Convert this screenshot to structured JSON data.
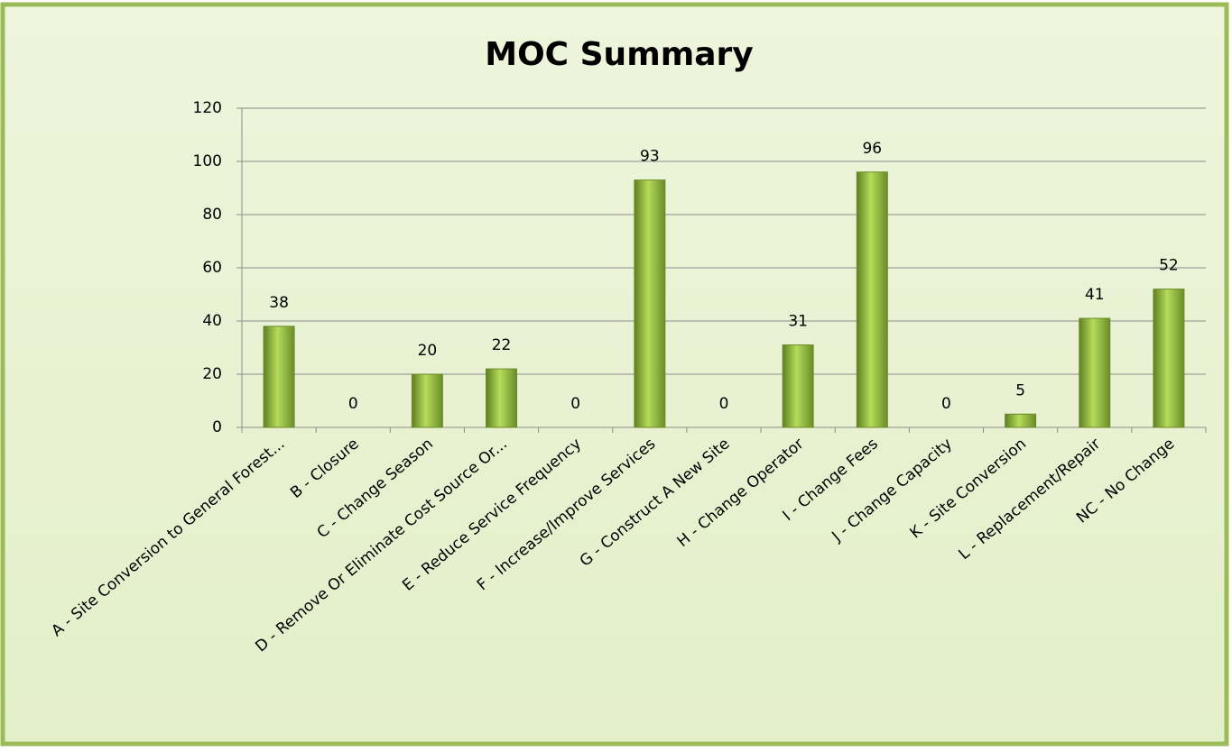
{
  "chart_data": {
    "type": "bar",
    "title": "MOC Summary",
    "categories": [
      "A - Site Conversion to General Forest...",
      "B - Closure",
      "C - Change Season",
      "D - Remove Or Eliminate Cost Source Or...",
      "E - Reduce Service Frequency",
      "F - Increase/Improve Services",
      "G - Construct A New Site",
      "H - Change Operator",
      "I - Change Fees",
      "J - Change Capacity",
      "K - Site Conversion",
      "L - Replacement/Repair",
      "NC - No Change"
    ],
    "values": [
      38,
      0,
      20,
      22,
      0,
      93,
      0,
      31,
      96,
      0,
      5,
      41,
      52
    ],
    "color": "#9bbb59",
    "ylim": [
      0,
      120
    ],
    "yticks": [
      0,
      20,
      40,
      60,
      80,
      100,
      120
    ],
    "grid": true
  }
}
